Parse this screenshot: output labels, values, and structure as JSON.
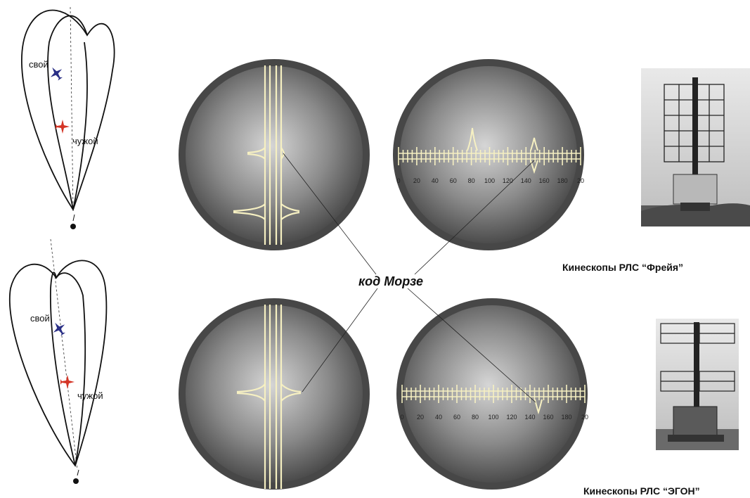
{
  "labels": {
    "own": "свой",
    "foreign": "чужой",
    "morse": "код Морзе"
  },
  "captions": {
    "freya": "Кинескопы РЛС “Фрейя”",
    "egon": "Кинескопы РЛС “ЭГОН”"
  },
  "range_scale": {
    "ticks": [
      "0",
      "20",
      "40",
      "60",
      "80",
      "100",
      "120",
      "140",
      "160",
      "180",
      "20"
    ]
  },
  "colors": {
    "screen_inner": "#d4d4d4",
    "screen_outer": "#3c3c3c",
    "bezel": "#4a4a4a",
    "trace": "#f6f0c2",
    "own_plane": "#2a2f86",
    "foreign_plane": "#d43526"
  }
}
